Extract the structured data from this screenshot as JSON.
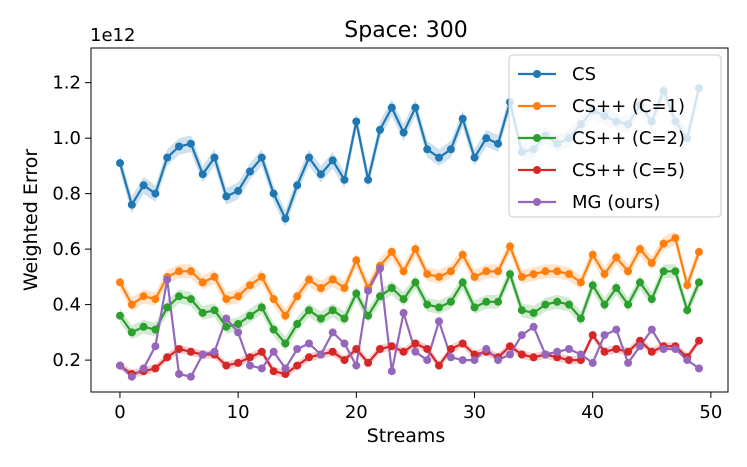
{
  "chart_data": {
    "type": "line",
    "title": "Space: 300",
    "xlabel": "Streams",
    "ylabel": "Weighted Error",
    "y_offset_label": "1e12",
    "xlim": [
      -2.45,
      51.45
    ],
    "ylim": [
      0.085,
      1.325
    ],
    "x_ticks": [
      0,
      10,
      20,
      30,
      40,
      50
    ],
    "x_tick_labels": [
      "0",
      "10",
      "20",
      "30",
      "40",
      "50"
    ],
    "y_ticks": [
      0.2,
      0.4,
      0.6,
      0.8,
      1.0,
      1.2
    ],
    "y_tick_labels": [
      "0.2",
      "0.4",
      "0.6",
      "0.8",
      "1.0",
      "1.2"
    ],
    "legend_position": "top-right",
    "series": [
      {
        "name": "CS",
        "color": "#1f77b4",
        "band": 0.03,
        "values": [
          0.91,
          0.76,
          0.83,
          0.8,
          0.93,
          0.97,
          0.98,
          0.87,
          0.93,
          0.79,
          0.81,
          0.88,
          0.93,
          0.8,
          0.71,
          0.83,
          0.93,
          0.87,
          0.92,
          0.85,
          1.06,
          0.85,
          1.03,
          1.11,
          1.02,
          1.11,
          0.96,
          0.93,
          0.96,
          1.07,
          0.93,
          1.0,
          0.98,
          1.13,
          0.95,
          0.96,
          1.01,
          0.98,
          1.0,
          1.05,
          1.1,
          1.08,
          1.06,
          1.05,
          1.12,
          1.06,
          1.17,
          1.06,
          1.0,
          1.18
        ]
      },
      {
        "name": "CS++ (C=1)",
        "color": "#ff7f0e",
        "band": 0.025,
        "values": [
          0.48,
          0.4,
          0.43,
          0.42,
          0.5,
          0.52,
          0.52,
          0.48,
          0.5,
          0.42,
          0.43,
          0.47,
          0.5,
          0.42,
          0.36,
          0.43,
          0.49,
          0.46,
          0.49,
          0.46,
          0.56,
          0.46,
          0.54,
          0.59,
          0.52,
          0.6,
          0.51,
          0.5,
          0.52,
          0.58,
          0.5,
          0.52,
          0.52,
          0.61,
          0.5,
          0.51,
          0.52,
          0.52,
          0.51,
          0.48,
          0.58,
          0.51,
          0.57,
          0.52,
          0.6,
          0.55,
          0.62,
          0.64,
          0.47,
          0.59
        ]
      },
      {
        "name": "CS++ (C=2)",
        "color": "#2ca02c",
        "band": 0.025,
        "values": [
          0.36,
          0.3,
          0.32,
          0.31,
          0.39,
          0.43,
          0.42,
          0.37,
          0.38,
          0.32,
          0.33,
          0.36,
          0.39,
          0.31,
          0.26,
          0.33,
          0.38,
          0.35,
          0.38,
          0.35,
          0.44,
          0.36,
          0.43,
          0.46,
          0.42,
          0.48,
          0.4,
          0.39,
          0.41,
          0.48,
          0.39,
          0.41,
          0.41,
          0.51,
          0.38,
          0.37,
          0.4,
          0.41,
          0.4,
          0.35,
          0.47,
          0.4,
          0.46,
          0.4,
          0.48,
          0.42,
          0.52,
          0.52,
          0.38,
          0.48
        ]
      },
      {
        "name": "CS++ (C=5)",
        "color": "#d62728",
        "band": 0.015,
        "values": [
          0.18,
          0.15,
          0.16,
          0.17,
          0.21,
          0.24,
          0.23,
          0.22,
          0.22,
          0.18,
          0.19,
          0.21,
          0.23,
          0.16,
          0.15,
          0.18,
          0.21,
          0.22,
          0.23,
          0.2,
          0.24,
          0.19,
          0.24,
          0.25,
          0.23,
          0.26,
          0.24,
          0.18,
          0.24,
          0.26,
          0.22,
          0.23,
          0.21,
          0.25,
          0.22,
          0.21,
          0.22,
          0.21,
          0.2,
          0.2,
          0.29,
          0.23,
          0.24,
          0.23,
          0.27,
          0.23,
          0.25,
          0.25,
          0.21,
          0.27
        ]
      },
      {
        "name": "MG (ours)",
        "color": "#9467bd",
        "band": 0,
        "values": [
          0.18,
          0.14,
          0.17,
          0.25,
          0.49,
          0.15,
          0.14,
          0.22,
          0.23,
          0.35,
          0.3,
          0.18,
          0.17,
          0.23,
          0.17,
          0.24,
          0.26,
          0.22,
          0.3,
          0.26,
          0.18,
          0.45,
          0.53,
          0.16,
          0.37,
          0.23,
          0.2,
          0.34,
          0.21,
          0.2,
          0.2,
          0.24,
          0.2,
          0.22,
          0.29,
          0.32,
          0.22,
          0.23,
          0.24,
          0.22,
          0.19,
          0.29,
          0.31,
          0.19,
          0.25,
          0.31,
          0.24,
          0.24,
          0.2,
          0.17
        ]
      }
    ]
  }
}
